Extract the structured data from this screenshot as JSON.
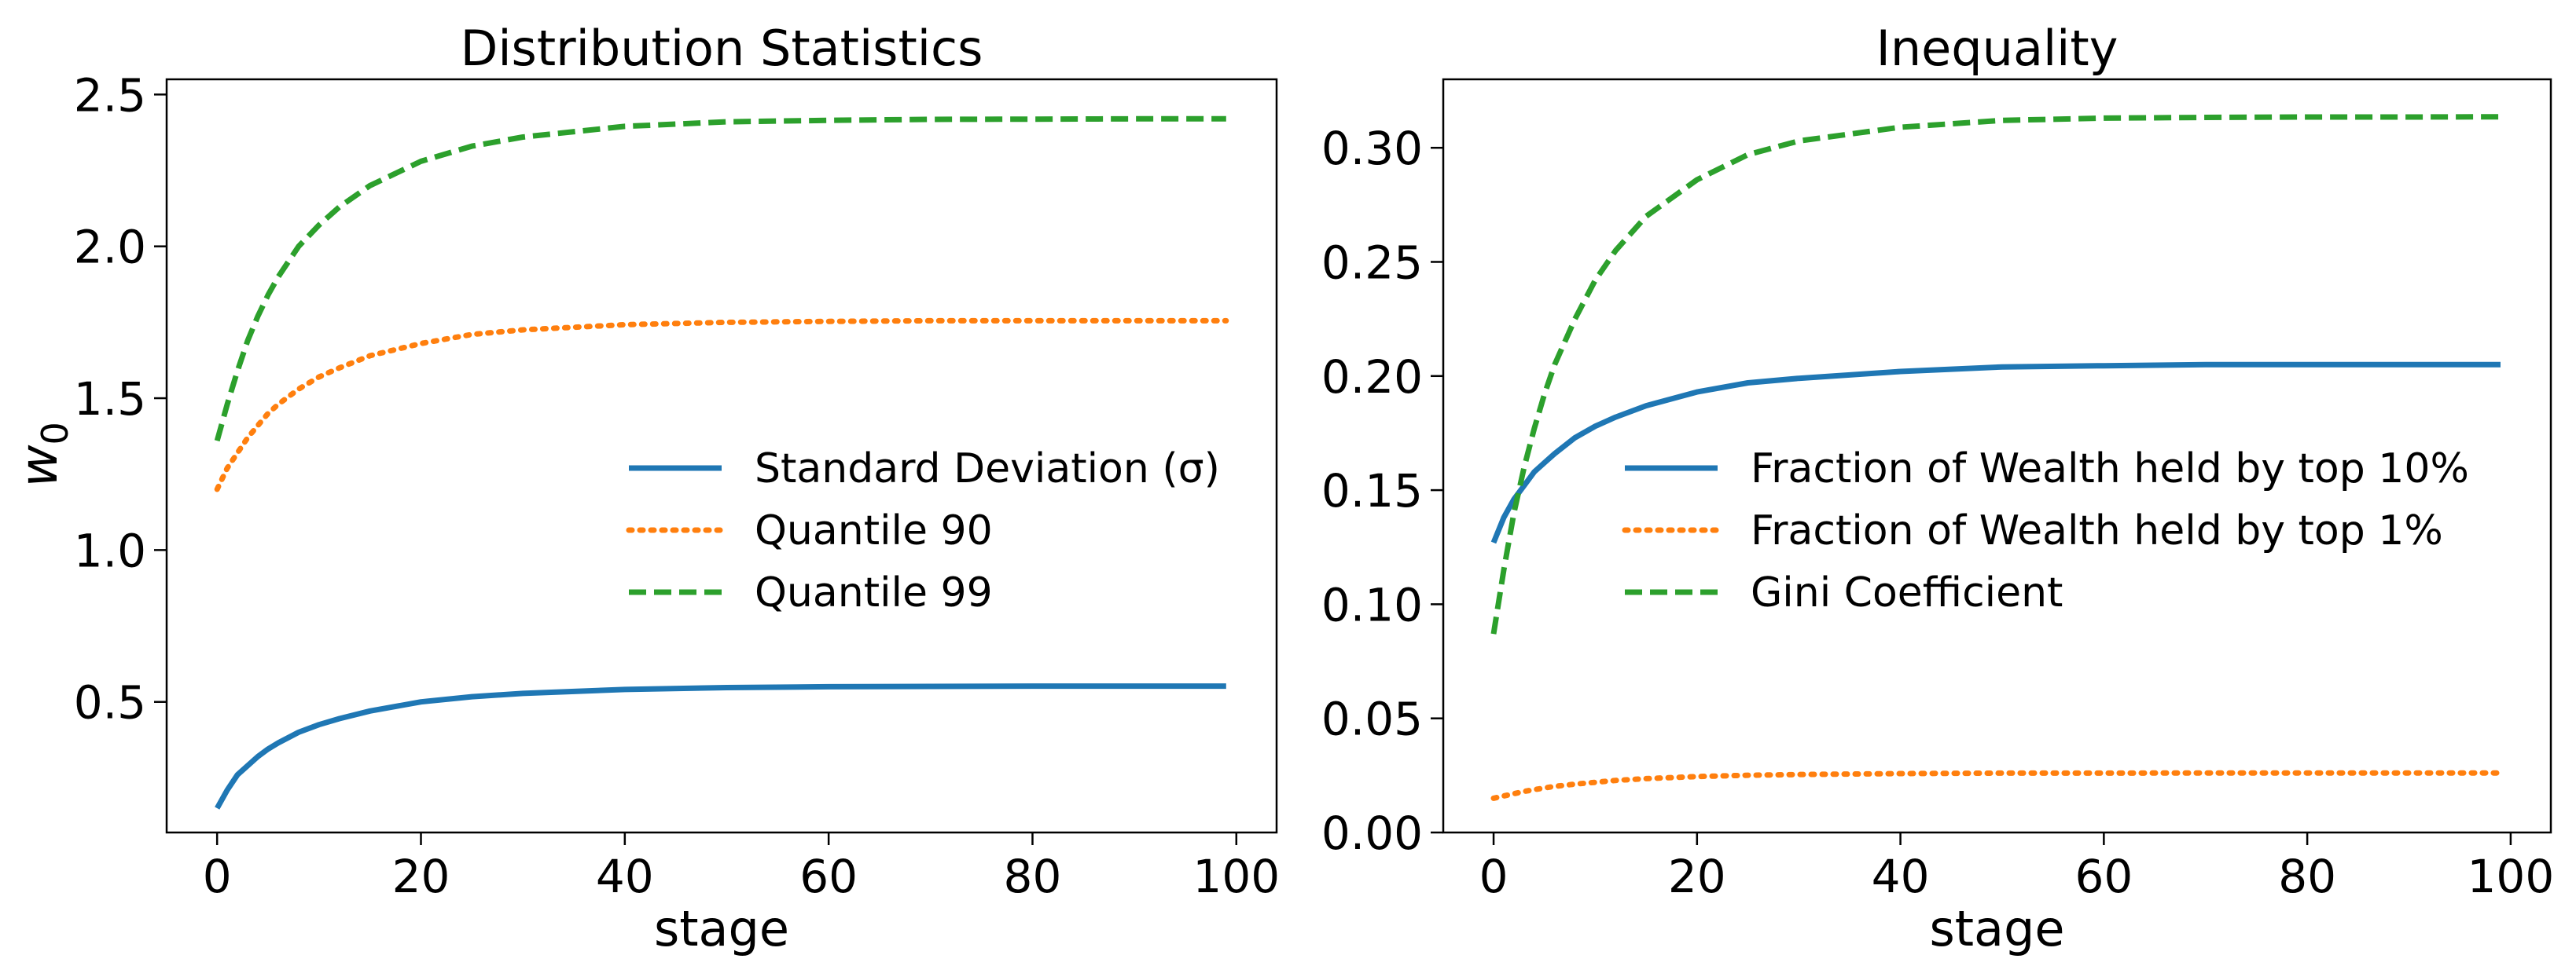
{
  "chart_data": [
    {
      "type": "line",
      "title": "Distribution Statistics",
      "xlabel": "stage",
      "ylabel_base": "w",
      "ylabel_sub": "0",
      "xlim": [
        -4.95,
        103.95
      ],
      "ylim": [
        0.07,
        2.55
      ],
      "xticks": [
        0,
        20,
        40,
        60,
        80,
        100
      ],
      "xtick_labels": [
        "0",
        "20",
        "40",
        "60",
        "80",
        "100"
      ],
      "yticks": [
        0.5,
        1.0,
        1.5,
        2.0,
        2.5
      ],
      "ytick_labels": [
        "0.5",
        "1.0",
        "1.5",
        "2.0",
        "2.5"
      ],
      "legend_position": "center-right",
      "series": [
        {
          "name": "Standard Deviation (σ)",
          "style": "solid",
          "color": "#1f77b4",
          "x": [
            0,
            1,
            2,
            3,
            4,
            5,
            6,
            8,
            10,
            12,
            15,
            20,
            25,
            30,
            40,
            50,
            60,
            70,
            80,
            90,
            99
          ],
          "y": [
            0.15,
            0.21,
            0.26,
            0.29,
            0.32,
            0.345,
            0.365,
            0.4,
            0.425,
            0.445,
            0.47,
            0.5,
            0.517,
            0.528,
            0.541,
            0.547,
            0.55,
            0.551,
            0.552,
            0.552,
            0.552
          ]
        },
        {
          "name": "Quantile 90",
          "style": "dotted",
          "color": "#ff7f0e",
          "x": [
            0,
            1,
            2,
            3,
            4,
            5,
            6,
            8,
            10,
            12,
            15,
            20,
            25,
            30,
            40,
            50,
            60,
            70,
            80,
            90,
            99
          ],
          "y": [
            1.2,
            1.27,
            1.32,
            1.37,
            1.41,
            1.45,
            1.48,
            1.53,
            1.57,
            1.6,
            1.64,
            1.68,
            1.71,
            1.725,
            1.742,
            1.75,
            1.753,
            1.755,
            1.755,
            1.755,
            1.755
          ]
        },
        {
          "name": "Quantile 99",
          "style": "dashed",
          "color": "#2ca02c",
          "x": [
            0,
            1,
            2,
            3,
            4,
            5,
            6,
            8,
            10,
            12,
            15,
            20,
            25,
            30,
            40,
            50,
            60,
            70,
            80,
            90,
            99
          ],
          "y": [
            1.36,
            1.48,
            1.59,
            1.69,
            1.77,
            1.84,
            1.9,
            2.0,
            2.07,
            2.13,
            2.2,
            2.28,
            2.33,
            2.36,
            2.395,
            2.41,
            2.415,
            2.418,
            2.419,
            2.42,
            2.42
          ]
        }
      ]
    },
    {
      "type": "line",
      "title": "Inequality",
      "xlabel": "stage",
      "ylabel_base": "",
      "ylabel_sub": "",
      "xlim": [
        -4.95,
        103.95
      ],
      "ylim": [
        0.0,
        0.33
      ],
      "xticks": [
        0,
        20,
        40,
        60,
        80,
        100
      ],
      "xtick_labels": [
        "0",
        "20",
        "40",
        "60",
        "80",
        "100"
      ],
      "yticks": [
        0.0,
        0.05,
        0.1,
        0.15,
        0.2,
        0.25,
        0.3
      ],
      "ytick_labels": [
        "0.00",
        "0.05",
        "0.10",
        "0.15",
        "0.20",
        "0.25",
        "0.30"
      ],
      "legend_position": "center-right",
      "series": [
        {
          "name": "Fraction of Wealth held by top 10%",
          "style": "solid",
          "color": "#1f77b4",
          "x": [
            0,
            1,
            2,
            3,
            4,
            5,
            6,
            8,
            10,
            12,
            15,
            20,
            25,
            30,
            40,
            50,
            60,
            70,
            80,
            90,
            99
          ],
          "y": [
            0.127,
            0.138,
            0.146,
            0.152,
            0.158,
            0.162,
            0.166,
            0.173,
            0.178,
            0.182,
            0.187,
            0.193,
            0.197,
            0.199,
            0.202,
            0.204,
            0.2045,
            0.205,
            0.205,
            0.205,
            0.205
          ]
        },
        {
          "name": "Fraction of Wealth held by top 1%",
          "style": "dotted",
          "color": "#ff7f0e",
          "x": [
            0,
            1,
            2,
            3,
            4,
            5,
            6,
            8,
            10,
            12,
            15,
            20,
            25,
            30,
            40,
            50,
            60,
            70,
            80,
            90,
            99
          ],
          "y": [
            0.015,
            0.016,
            0.017,
            0.018,
            0.0188,
            0.0195,
            0.0202,
            0.0212,
            0.022,
            0.0228,
            0.0236,
            0.0245,
            0.0251,
            0.0254,
            0.0258,
            0.026,
            0.026,
            0.0261,
            0.0261,
            0.0261,
            0.0261
          ]
        },
        {
          "name": "Gini Coefficient",
          "style": "dashed",
          "color": "#2ca02c",
          "x": [
            0,
            1,
            2,
            3,
            4,
            5,
            6,
            8,
            10,
            12,
            15,
            20,
            25,
            30,
            40,
            50,
            60,
            70,
            80,
            90,
            99
          ],
          "y": [
            0.087,
            0.115,
            0.14,
            0.16,
            0.177,
            0.192,
            0.205,
            0.225,
            0.242,
            0.255,
            0.27,
            0.286,
            0.297,
            0.303,
            0.309,
            0.312,
            0.313,
            0.3133,
            0.3135,
            0.3135,
            0.3136
          ]
        }
      ]
    }
  ]
}
